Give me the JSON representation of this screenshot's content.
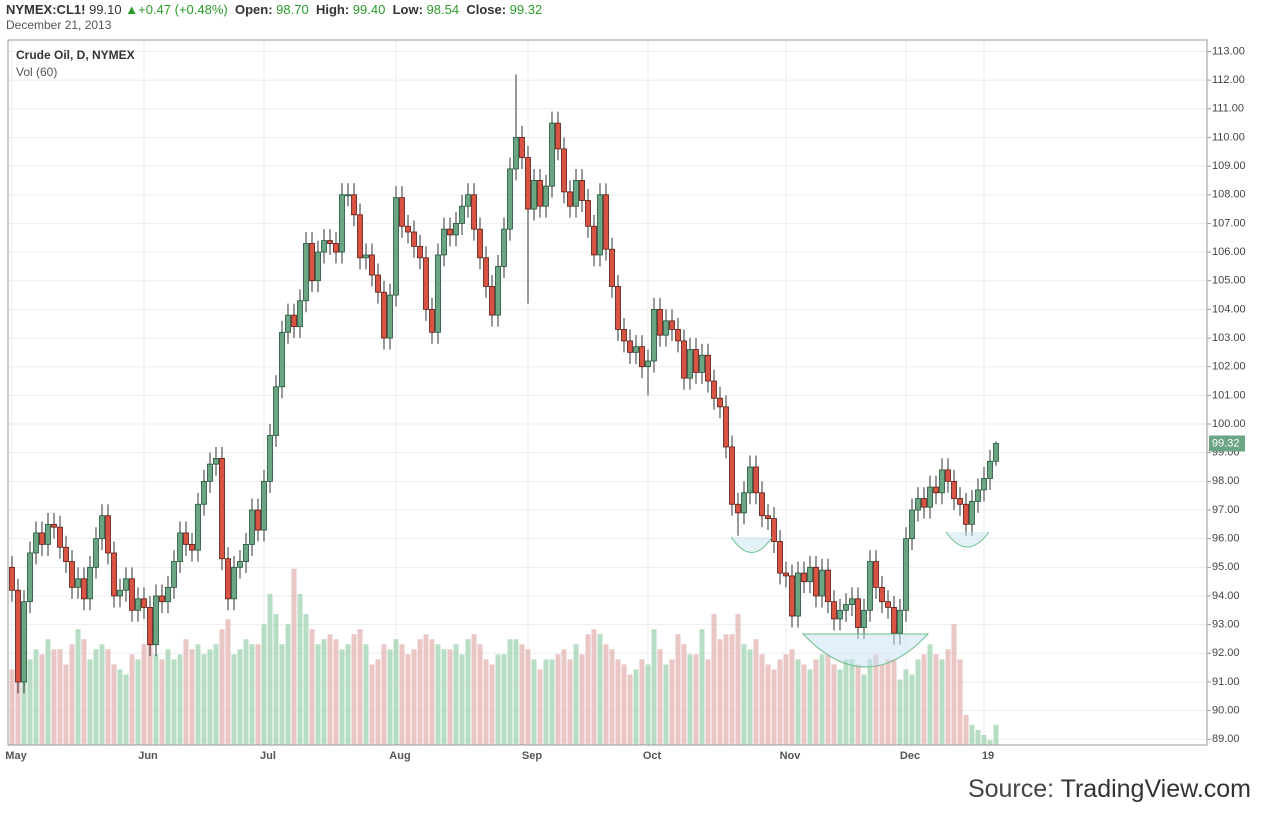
{
  "header": {
    "symbol": "NYMEX:CL1!",
    "last": "99.10",
    "change": "+0.47 (+0.48%)",
    "open_label": "Open:",
    "open": "98.70",
    "high_label": "High:",
    "high": "99.40",
    "low_label": "Low:",
    "low": "98.54",
    "close_label": "Close:",
    "close": "99.32",
    "date": "December 21, 2013"
  },
  "source": {
    "prefix": "Source:",
    "brand": "TradingView.com"
  },
  "chart_data": {
    "type": "candlestick",
    "title": "Crude Oil, D, NYMEX",
    "subtitle": "Vol (60)",
    "categories": [
      "May",
      null,
      null,
      null,
      null,
      null,
      null,
      null,
      null,
      null,
      null,
      null,
      null,
      null,
      null,
      null,
      null,
      null,
      null,
      null,
      null,
      null,
      "Jun",
      null,
      null,
      null,
      null,
      null,
      null,
      null,
      null,
      null,
      null,
      null,
      null,
      null,
      null,
      null,
      null,
      null,
      null,
      null,
      "Jul",
      null,
      null,
      null,
      null,
      null,
      null,
      null,
      null,
      null,
      null,
      null,
      null,
      null,
      null,
      null,
      null,
      null,
      null,
      null,
      null,
      null,
      "Aug",
      null,
      null,
      null,
      null,
      null,
      null,
      null,
      null,
      null,
      null,
      null,
      null,
      null,
      null,
      null,
      null,
      null,
      null,
      null,
      null,
      null,
      "Sep",
      null,
      null,
      null,
      null,
      null,
      null,
      null,
      null,
      null,
      null,
      null,
      null,
      null,
      null,
      null,
      null,
      null,
      null,
      null,
      "Oct",
      null,
      null,
      null,
      null,
      null,
      null,
      null,
      null,
      null,
      null,
      null,
      null,
      null,
      null,
      null,
      null,
      null,
      null,
      null,
      null,
      null,
      null,
      "Nov",
      null,
      null,
      null,
      null,
      null,
      null,
      null,
      null,
      null,
      null,
      null,
      null,
      null,
      null,
      null,
      null,
      null,
      null,
      null,
      "Dec",
      null,
      null,
      null,
      null,
      null,
      null,
      null,
      null,
      null,
      null,
      null,
      null,
      "19",
      null,
      null
    ],
    "open": [
      95.0,
      94.2,
      91.0,
      93.8,
      95.5,
      96.2,
      95.8,
      96.5,
      96.4,
      95.7,
      95.2,
      94.3,
      94.6,
      93.9,
      95.0,
      96.0,
      96.8,
      95.5,
      94.0,
      94.2,
      94.6,
      93.5,
      93.9,
      93.6,
      92.3,
      94.0,
      93.8,
      94.3,
      95.2,
      96.2,
      95.8,
      95.6,
      97.2,
      98.0,
      98.6,
      98.8,
      95.3,
      93.9,
      95.0,
      95.2,
      95.8,
      97.0,
      96.3,
      98.0,
      99.6,
      101.3,
      103.2,
      103.8,
      103.4,
      104.3,
      106.3,
      105.0,
      106.0,
      106.4,
      106.3,
      106.0,
      108.0,
      108.0,
      107.3,
      105.8,
      105.9,
      105.2,
      104.6,
      103.0,
      104.5,
      107.9,
      106.9,
      106.7,
      106.2,
      105.8,
      104.0,
      103.2,
      105.9,
      106.8,
      106.6,
      107.0,
      107.6,
      108.0,
      106.8,
      105.8,
      104.8,
      103.8,
      105.5,
      106.8,
      108.9,
      110.0,
      109.3,
      107.5,
      108.5,
      107.6,
      108.3,
      110.5,
      109.6,
      108.1,
      107.6,
      108.5,
      107.8,
      106.9,
      105.9,
      108.0,
      106.1,
      104.8,
      103.3,
      102.9,
      102.5,
      102.7,
      102.0,
      102.2,
      104.0,
      103.1,
      103.6,
      103.3,
      102.9,
      101.6,
      102.6,
      101.8,
      102.4,
      101.5,
      100.9,
      100.6,
      99.2,
      97.2,
      96.9,
      97.6,
      98.5,
      97.6,
      96.8,
      96.7,
      95.9,
      94.8,
      94.7,
      93.3,
      94.8,
      94.5,
      95.0,
      94.0,
      94.9,
      93.8,
      93.2,
      93.5,
      93.7,
      93.9,
      92.9,
      93.5,
      95.2,
      94.3,
      93.8,
      93.6,
      92.7,
      93.5,
      96.0,
      97.0,
      97.4,
      97.1,
      97.8,
      97.6,
      98.4,
      98.0,
      97.4,
      97.2,
      96.5,
      97.3,
      97.7,
      98.1,
      98.7
    ],
    "high": [
      95.4,
      94.6,
      94.2,
      95.9,
      96.6,
      96.6,
      96.9,
      96.9,
      96.8,
      96.1,
      95.6,
      95.0,
      95.0,
      95.4,
      96.4,
      97.2,
      97.2,
      95.9,
      94.6,
      95.0,
      95.0,
      94.3,
      94.3,
      94.0,
      94.4,
      94.4,
      94.7,
      95.6,
      96.6,
      96.6,
      96.2,
      97.6,
      98.4,
      99.0,
      99.2,
      99.2,
      95.7,
      95.4,
      95.6,
      96.2,
      97.4,
      97.4,
      98.4,
      100.0,
      101.7,
      103.6,
      104.2,
      104.2,
      104.7,
      106.7,
      106.7,
      106.4,
      106.8,
      106.8,
      106.7,
      108.4,
      108.4,
      108.4,
      107.7,
      106.3,
      106.3,
      105.6,
      105.0,
      104.9,
      108.3,
      108.3,
      107.3,
      107.1,
      106.6,
      106.2,
      104.4,
      106.3,
      107.2,
      107.2,
      107.4,
      108.0,
      108.4,
      108.4,
      107.2,
      106.2,
      105.2,
      105.9,
      107.2,
      109.3,
      112.2,
      110.4,
      109.7,
      108.9,
      108.9,
      108.7,
      110.9,
      110.9,
      110.0,
      108.5,
      108.9,
      108.9,
      108.2,
      107.3,
      108.4,
      108.4,
      106.5,
      105.2,
      103.7,
      103.3,
      103.1,
      103.1,
      102.6,
      104.4,
      104.4,
      104.0,
      104.0,
      103.7,
      103.3,
      103.0,
      103.0,
      102.8,
      102.8,
      101.9,
      101.3,
      101.0,
      99.6,
      97.6,
      98.0,
      98.9,
      98.9,
      98.0,
      97.2,
      97.1,
      96.3,
      95.2,
      95.1,
      95.2,
      95.2,
      95.4,
      95.4,
      95.3,
      95.3,
      94.2,
      93.9,
      94.1,
      94.3,
      94.3,
      93.9,
      95.6,
      95.6,
      94.7,
      94.2,
      94.0,
      93.9,
      96.4,
      97.4,
      97.8,
      97.8,
      98.2,
      98.2,
      98.8,
      98.8,
      98.4,
      97.8,
      97.6,
      97.7,
      98.1,
      98.5,
      99.1,
      99.4
    ],
    "low": [
      93.8,
      90.6,
      90.6,
      93.4,
      95.1,
      95.4,
      95.4,
      96.0,
      95.3,
      94.8,
      93.9,
      93.9,
      93.5,
      93.5,
      94.6,
      95.6,
      95.1,
      93.6,
      93.6,
      93.8,
      93.1,
      93.1,
      93.2,
      91.9,
      91.9,
      93.4,
      93.4,
      93.9,
      94.8,
      95.4,
      95.2,
      95.2,
      96.8,
      97.6,
      98.2,
      94.9,
      93.5,
      93.5,
      94.6,
      94.8,
      95.4,
      95.9,
      95.9,
      97.6,
      99.2,
      100.9,
      102.8,
      103.0,
      103.0,
      103.9,
      104.6,
      104.6,
      105.6,
      105.9,
      105.6,
      105.6,
      107.6,
      106.9,
      105.4,
      105.4,
      104.8,
      104.2,
      102.6,
      102.6,
      104.1,
      106.5,
      106.3,
      105.8,
      105.4,
      103.6,
      102.8,
      102.8,
      105.5,
      106.2,
      106.2,
      106.6,
      107.2,
      106.4,
      105.4,
      104.4,
      103.4,
      103.4,
      105.1,
      106.4,
      108.5,
      108.9,
      104.2,
      107.1,
      107.2,
      107.2,
      107.9,
      109.2,
      107.7,
      107.2,
      107.2,
      107.4,
      106.5,
      105.5,
      105.5,
      105.7,
      104.4,
      102.9,
      102.5,
      102.1,
      102.1,
      101.6,
      101.0,
      101.8,
      102.7,
      102.7,
      102.9,
      102.5,
      101.2,
      101.2,
      101.4,
      101.4,
      101.1,
      100.5,
      100.2,
      98.8,
      96.8,
      96.1,
      96.5,
      97.2,
      97.2,
      96.4,
      96.3,
      95.5,
      94.4,
      94.3,
      92.9,
      92.9,
      94.1,
      94.1,
      93.6,
      93.6,
      93.4,
      92.8,
      92.8,
      93.1,
      93.3,
      92.5,
      92.5,
      93.1,
      93.9,
      93.4,
      93.2,
      92.3,
      92.3,
      93.1,
      95.6,
      96.6,
      96.7,
      96.7,
      97.2,
      97.2,
      97.6,
      97.0,
      96.8,
      96.1,
      96.1,
      96.9,
      97.3,
      97.7,
      98.54
    ],
    "close": [
      94.2,
      91.0,
      93.8,
      95.5,
      96.2,
      95.8,
      96.5,
      96.4,
      95.7,
      95.2,
      94.3,
      94.6,
      93.9,
      95.0,
      96.0,
      96.8,
      95.5,
      94.0,
      94.2,
      94.6,
      93.5,
      93.9,
      93.6,
      92.3,
      94.0,
      93.8,
      94.3,
      95.2,
      96.2,
      95.8,
      95.6,
      97.2,
      98.0,
      98.6,
      98.8,
      95.3,
      93.9,
      95.0,
      95.2,
      95.8,
      97.0,
      96.3,
      98.0,
      99.6,
      101.3,
      103.2,
      103.8,
      103.4,
      104.3,
      106.3,
      105.0,
      106.0,
      106.4,
      106.3,
      106.0,
      108.0,
      108.0,
      107.3,
      105.8,
      105.9,
      105.2,
      104.6,
      103.0,
      104.5,
      107.9,
      106.9,
      106.7,
      106.2,
      105.8,
      104.0,
      103.2,
      105.9,
      106.8,
      106.6,
      107.0,
      107.6,
      108.0,
      106.8,
      105.8,
      104.8,
      103.8,
      105.5,
      106.8,
      108.9,
      110.0,
      109.3,
      107.5,
      108.5,
      107.6,
      108.3,
      110.5,
      109.6,
      108.1,
      107.6,
      108.5,
      107.8,
      106.9,
      105.9,
      108.0,
      106.1,
      104.8,
      103.3,
      102.9,
      102.5,
      102.7,
      102.0,
      102.2,
      104.0,
      103.1,
      103.6,
      103.3,
      102.9,
      101.6,
      102.6,
      101.8,
      102.4,
      101.5,
      100.9,
      100.6,
      99.2,
      97.2,
      96.9,
      97.6,
      98.5,
      97.6,
      96.8,
      96.7,
      95.9,
      94.8,
      94.7,
      93.3,
      94.8,
      94.5,
      95.0,
      94.0,
      94.9,
      93.8,
      93.2,
      93.5,
      93.7,
      93.9,
      92.9,
      93.5,
      95.2,
      94.3,
      93.8,
      93.6,
      92.7,
      93.5,
      96.0,
      97.0,
      97.4,
      97.1,
      97.8,
      97.6,
      98.4,
      98.0,
      97.4,
      97.2,
      96.5,
      97.3,
      97.7,
      98.1,
      98.7,
      99.32
    ],
    "volume": [
      150,
      260,
      180,
      170,
      190,
      180,
      210,
      190,
      190,
      160,
      200,
      230,
      210,
      170,
      190,
      200,
      190,
      160,
      150,
      140,
      180,
      170,
      200,
      230,
      180,
      170,
      190,
      170,
      180,
      210,
      190,
      200,
      180,
      190,
      200,
      230,
      250,
      180,
      190,
      210,
      200,
      200,
      240,
      300,
      260,
      200,
      240,
      350,
      300,
      260,
      230,
      200,
      210,
      220,
      210,
      190,
      200,
      220,
      230,
      200,
      160,
      170,
      200,
      190,
      210,
      200,
      180,
      190,
      210,
      220,
      210,
      200,
      190,
      190,
      200,
      180,
      210,
      220,
      200,
      170,
      160,
      180,
      180,
      210,
      210,
      200,
      190,
      170,
      150,
      170,
      170,
      180,
      190,
      170,
      200,
      180,
      220,
      230,
      220,
      200,
      190,
      170,
      160,
      140,
      150,
      170,
      160,
      230,
      190,
      160,
      170,
      220,
      200,
      180,
      180,
      230,
      170,
      260,
      210,
      220,
      220,
      260,
      200,
      190,
      210,
      180,
      160,
      150,
      170,
      180,
      190,
      170,
      160,
      150,
      170,
      180,
      180,
      160,
      150,
      170,
      170,
      160,
      140,
      170,
      180,
      160,
      170,
      170,
      130,
      150,
      140,
      170,
      180,
      200,
      180,
      170,
      190,
      240,
      170,
      60,
      40,
      30,
      20,
      10,
      40
    ],
    "volume_lim": [
      0,
      1400
    ],
    "ylim": [
      88.8,
      113.4
    ],
    "yticks": [
      {
        "value": 89,
        "label": "89.00"
      },
      {
        "value": 90,
        "label": "90.00"
      },
      {
        "value": 91,
        "label": "91.00"
      },
      {
        "value": 92,
        "label": "92.00"
      },
      {
        "value": 93,
        "label": "93.00"
      },
      {
        "value": 94,
        "label": "94.00"
      },
      {
        "value": 95,
        "label": "95.00"
      },
      {
        "value": 96,
        "label": "96.00"
      },
      {
        "value": 97,
        "label": "97.00"
      },
      {
        "value": 98,
        "label": "98.00"
      },
      {
        "value": 99,
        "label": "99.00"
      },
      {
        "value": 100,
        "label": "100.00"
      },
      {
        "value": 101,
        "label": "101.00"
      },
      {
        "value": 102,
        "label": "102.00"
      },
      {
        "value": 103,
        "label": "103.00"
      },
      {
        "value": 104,
        "label": "104.00"
      },
      {
        "value": 105,
        "label": "105.00"
      },
      {
        "value": 106,
        "label": "106.00"
      },
      {
        "value": 107,
        "label": "107.00"
      },
      {
        "value": 108,
        "label": "108.00"
      },
      {
        "value": 109,
        "label": "109.00"
      },
      {
        "value": 110,
        "label": "110.00"
      },
      {
        "value": 111,
        "label": "111.00"
      },
      {
        "value": 112,
        "label": "112.00"
      },
      {
        "value": 113,
        "label": "113.00"
      }
    ],
    "grid": true,
    "up_color": "#6ba583",
    "down_color": "#d75442",
    "up_volume_color": "#9fd3b0",
    "down_volume_color": "#e3b3b0"
  }
}
